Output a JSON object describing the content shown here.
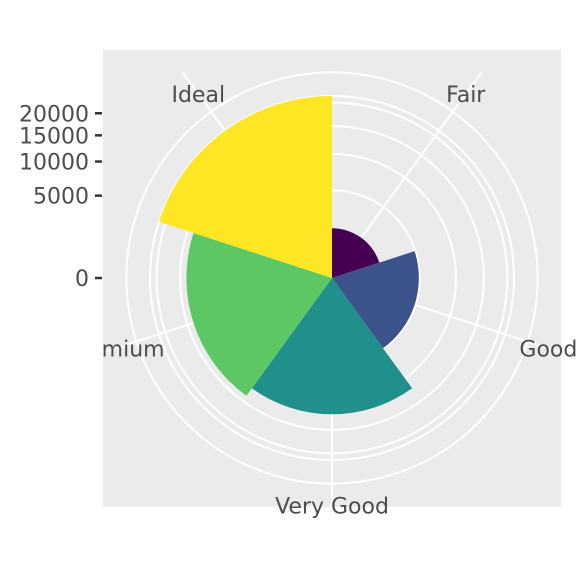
{
  "chart_data": {
    "type": "bar",
    "subtype": "coxcomb",
    "categories": [
      "Fair",
      "Good",
      "Very Good",
      "Premium",
      "Ideal"
    ],
    "values": [
      1610,
      4906,
      12082,
      13791,
      21551
    ],
    "colors": [
      "#440154",
      "#3B528B",
      "#21908C",
      "#5DC863",
      "#FDE725"
    ],
    "yticks": [
      0,
      5000,
      10000,
      15000,
      20000
    ],
    "ylim": [
      0,
      21551
    ],
    "grid": true,
    "legend": "none",
    "title": "",
    "xlabel": "",
    "ylabel": ""
  }
}
